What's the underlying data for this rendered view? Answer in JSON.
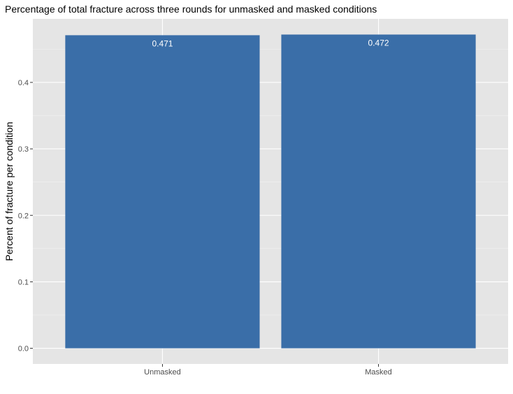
{
  "chart_data": {
    "type": "bar",
    "title": "Percentage of total fracture across three rounds for unmasked and masked conditions",
    "xlabel": "",
    "ylabel": "Percent of fracture per condition",
    "categories": [
      "Unmasked",
      "Masked"
    ],
    "values": [
      0.471,
      0.472
    ],
    "data_labels": [
      "0.471",
      "0.472"
    ],
    "yticks": [
      0.0,
      0.1,
      0.2,
      0.3,
      0.4
    ],
    "ytick_labels": [
      "0.0",
      "0.1",
      "0.2",
      "0.3",
      "0.4"
    ],
    "ylim": [
      -0.0236,
      0.4956
    ],
    "grid": true,
    "legend": "none",
    "colors": {
      "bar": "#3A6EA8",
      "panel_background": "#E5E5E5",
      "grid_major": "#FFFFFF",
      "grid_minor": "#F2F2F2",
      "tick_text": "#4D4D4D",
      "data_label": "#FFFFFF"
    }
  }
}
